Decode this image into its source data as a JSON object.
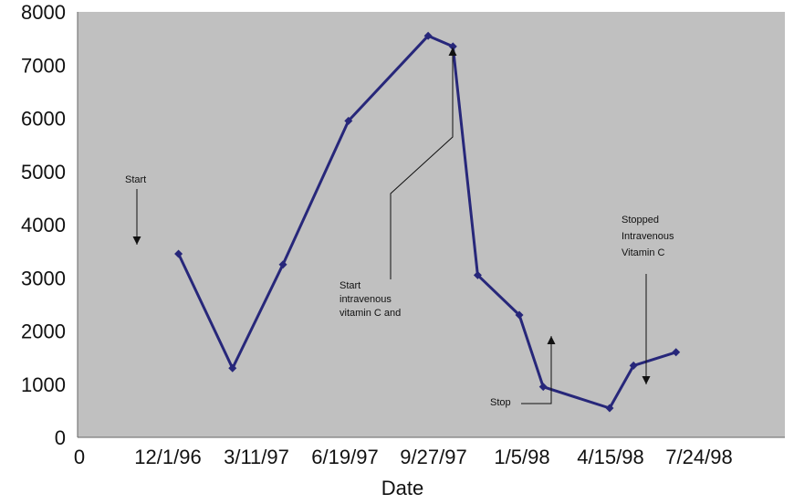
{
  "chart_data": {
    "type": "line",
    "xlabel": "Date",
    "ylabel": "",
    "ylim": [
      0,
      8000
    ],
    "y_ticks": [
      0,
      1000,
      2000,
      3000,
      4000,
      5000,
      6000,
      7000,
      8000
    ],
    "x_tick_labels": [
      "0",
      "12/1/96",
      "3/11/97",
      "6/19/97",
      "9/27/97",
      "1/5/98",
      "4/15/98",
      "7/24/98"
    ],
    "grid": false,
    "plot_background": "#c0c0c0",
    "series": [
      {
        "color": "#27277a",
        "points": [
          {
            "x": "1996-12-15",
            "y": 3450
          },
          {
            "x": "1997-02-14",
            "y": 1300
          },
          {
            "x": "1997-04-12",
            "y": 3250
          },
          {
            "x": "1997-06-25",
            "y": 5950
          },
          {
            "x": "1997-09-23",
            "y": 7550
          },
          {
            "x": "1997-10-21",
            "y": 7350
          },
          {
            "x": "1997-11-18",
            "y": 3050
          },
          {
            "x": "1998-01-04",
            "y": 2300
          },
          {
            "x": "1998-01-31",
            "y": 950
          },
          {
            "x": "1998-04-16",
            "y": 550
          },
          {
            "x": "1998-05-13",
            "y": 1350
          },
          {
            "x": "1998-06-30",
            "y": 1600
          }
        ]
      }
    ],
    "annotations": [
      {
        "id": "start",
        "lines": [
          "Start"
        ]
      },
      {
        "id": "start-ivc",
        "lines": [
          "Start",
          "intravenous",
          "vitamin C and"
        ]
      },
      {
        "id": "stop",
        "lines": [
          "Stop"
        ]
      },
      {
        "id": "stopped-ivc",
        "lines": [
          "Stopped",
          "Intravenous",
          "Vitamin C"
        ]
      }
    ]
  }
}
